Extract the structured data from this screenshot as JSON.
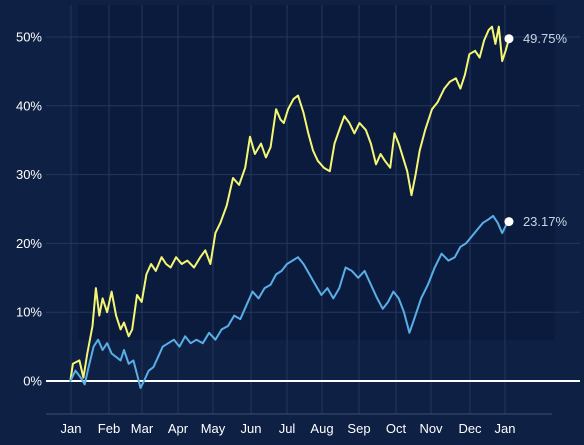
{
  "chart_data": {
    "type": "line",
    "title": "",
    "xlabel": "",
    "ylabel": "",
    "grid": true,
    "x_ticks": [
      "Jan",
      "Feb",
      "Mar",
      "Apr",
      "May",
      "Jun",
      "Jul",
      "Aug",
      "Sep",
      "Oct",
      "Nov",
      "Dec",
      "Jan"
    ],
    "y_ticks": [
      "0%",
      "10%",
      "20%",
      "30%",
      "40%",
      "50%"
    ],
    "ylim": [
      -4.5,
      54.5
    ],
    "x_domain": [
      "Jan 1",
      "Jan 21 (next year)"
    ],
    "series": [
      {
        "color": "#f4f774",
        "end_label": "49.75%",
        "points": [
          [
            "Jan 15",
            0.0
          ],
          [
            "Jan 17",
            2.5
          ],
          [
            "Jan 22",
            3.0
          ],
          [
            "Jan 25",
            0.5
          ],
          [
            "Jan 28",
            4.0
          ],
          [
            "Feb 1",
            8.0
          ],
          [
            "Feb 4",
            13.5
          ],
          [
            "Feb 7",
            9.5
          ],
          [
            "Feb 10",
            12.0
          ],
          [
            "Feb 14",
            10.0
          ],
          [
            "Feb 18",
            13.0
          ],
          [
            "Feb 22",
            9.5
          ],
          [
            "Feb 26",
            7.5
          ],
          [
            "Mar 1",
            8.5
          ],
          [
            "Mar 5",
            6.5
          ],
          [
            "Mar 8",
            7.5
          ],
          [
            "Mar 12",
            12.5
          ],
          [
            "Mar 16",
            11.5
          ],
          [
            "Mar 20",
            15.5
          ],
          [
            "Mar 24",
            17.0
          ],
          [
            "Mar 28",
            16.0
          ],
          [
            "Apr 2",
            18.0
          ],
          [
            "Apr 6",
            17.0
          ],
          [
            "Apr 10",
            16.5
          ],
          [
            "Apr 15",
            18.0
          ],
          [
            "Apr 20",
            17.0
          ],
          [
            "Apr 25",
            17.5
          ],
          [
            "May 1",
            16.5
          ],
          [
            "May 6",
            18.0
          ],
          [
            "May 10",
            19.0
          ],
          [
            "May 14",
            17.0
          ],
          [
            "May 18",
            21.5
          ],
          [
            "May 22",
            23.0
          ],
          [
            "May 27",
            25.5
          ],
          [
            "Jun 1",
            29.5
          ],
          [
            "Jun 6",
            28.5
          ],
          [
            "Jun 11",
            31.0
          ],
          [
            "Jun 15",
            35.5
          ],
          [
            "Jun 19",
            33.0
          ],
          [
            "Jun 24",
            34.5
          ],
          [
            "Jun 28",
            32.5
          ],
          [
            "Jul 2",
            34.0
          ],
          [
            "Jul 7",
            39.5
          ],
          [
            "Jul 11",
            38.0
          ],
          [
            "Jul 14",
            37.5
          ],
          [
            "Jul 18",
            39.5
          ],
          [
            "Jul 23",
            41.0
          ],
          [
            "Jul 27",
            41.5
          ],
          [
            "Aug 1",
            39.0
          ],
          [
            "Aug 5",
            36.0
          ],
          [
            "Aug 9",
            33.5
          ],
          [
            "Aug 13",
            32.0
          ],
          [
            "Aug 18",
            31.0
          ],
          [
            "Aug 23",
            30.5
          ],
          [
            "Aug 27",
            34.5
          ],
          [
            "Sep 1",
            37.0
          ],
          [
            "Sep 4",
            38.5
          ],
          [
            "Sep 8",
            37.5
          ],
          [
            "Sep 12",
            36.0
          ],
          [
            "Sep 16",
            37.5
          ],
          [
            "Sep 21",
            36.5
          ],
          [
            "Sep 25",
            34.5
          ],
          [
            "Sep 29",
            31.5
          ],
          [
            "Oct 3",
            33.0
          ],
          [
            "Oct 7",
            32.0
          ],
          [
            "Oct 12",
            31.0
          ],
          [
            "Oct 16",
            36.0
          ],
          [
            "Oct 20",
            34.5
          ],
          [
            "Oct 24",
            32.5
          ],
          [
            "Oct 28",
            30.5
          ],
          [
            "Nov 1",
            27.0
          ],
          [
            "Nov 4",
            30.0
          ],
          [
            "Nov 7",
            33.5
          ],
          [
            "Nov 11",
            36.5
          ],
          [
            "Nov 16",
            39.5
          ],
          [
            "Nov 20",
            40.5
          ],
          [
            "Nov 25",
            42.5
          ],
          [
            "Nov 29",
            43.5
          ],
          [
            "Dec 4",
            44.0
          ],
          [
            "Dec 8",
            42.5
          ],
          [
            "Dec 12",
            44.5
          ],
          [
            "Dec 16",
            47.5
          ],
          [
            "Dec 21",
            48.0
          ],
          [
            "Dec 25",
            47.0
          ],
          [
            "Dec 29",
            49.5
          ],
          [
            "Jan 2",
            51.0
          ],
          [
            "Jan 5",
            51.5
          ],
          [
            "Jan 8",
            49.0
          ],
          [
            "Jan 11",
            51.5
          ],
          [
            "Jan 14",
            46.5
          ],
          [
            "Jan 17",
            48.0
          ],
          [
            "Jan 20",
            49.75
          ]
        ]
      },
      {
        "color": "#5aaee8",
        "end_label": "23.17%",
        "points": [
          [
            "Jan 15",
            0.0
          ],
          [
            "Jan 19",
            1.5
          ],
          [
            "Jan 23",
            0.5
          ],
          [
            "Jan 26",
            -0.5
          ],
          [
            "Jan 29",
            2.0
          ],
          [
            "Feb 2",
            5.0
          ],
          [
            "Feb 6",
            6.0
          ],
          [
            "Feb 10",
            4.5
          ],
          [
            "Feb 14",
            5.5
          ],
          [
            "Feb 18",
            4.0
          ],
          [
            "Feb 22",
            3.5
          ],
          [
            "Feb 26",
            3.0
          ],
          [
            "Mar 1",
            4.5
          ],
          [
            "Mar 5",
            2.5
          ],
          [
            "Mar 9",
            3.0
          ],
          [
            "Mar 12",
            1.0
          ],
          [
            "Mar 15",
            -1.0
          ],
          [
            "Mar 18",
            0.0
          ],
          [
            "Mar 22",
            1.5
          ],
          [
            "Mar 26",
            2.0
          ],
          [
            "Mar 30",
            3.5
          ],
          [
            "Apr 3",
            5.0
          ],
          [
            "Apr 8",
            5.5
          ],
          [
            "Apr 13",
            6.0
          ],
          [
            "Apr 18",
            5.0
          ],
          [
            "Apr 23",
            6.5
          ],
          [
            "Apr 28",
            5.5
          ],
          [
            "May 3",
            6.0
          ],
          [
            "May 8",
            5.5
          ],
          [
            "May 13",
            7.0
          ],
          [
            "May 18",
            6.0
          ],
          [
            "May 23",
            7.5
          ],
          [
            "May 28",
            8.0
          ],
          [
            "Jun 2",
            9.5
          ],
          [
            "Jun 7",
            9.0
          ],
          [
            "Jun 12",
            11.0
          ],
          [
            "Jun 17",
            13.0
          ],
          [
            "Jun 22",
            12.0
          ],
          [
            "Jun 27",
            13.5
          ],
          [
            "Jul 2",
            14.0
          ],
          [
            "Jul 7",
            15.5
          ],
          [
            "Jul 12",
            16.0
          ],
          [
            "Jul 17",
            17.0
          ],
          [
            "Jul 22",
            17.5
          ],
          [
            "Jul 27",
            18.0
          ],
          [
            "Aug 1",
            17.0
          ],
          [
            "Aug 6",
            15.5
          ],
          [
            "Aug 11",
            14.0
          ],
          [
            "Aug 16",
            12.5
          ],
          [
            "Aug 21",
            13.5
          ],
          [
            "Aug 26",
            12.0
          ],
          [
            "Aug 31",
            13.5
          ],
          [
            "Sep 5",
            16.5
          ],
          [
            "Sep 10",
            16.0
          ],
          [
            "Sep 15",
            15.0
          ],
          [
            "Sep 20",
            16.0
          ],
          [
            "Sep 25",
            14.0
          ],
          [
            "Sep 30",
            12.0
          ],
          [
            "Oct 5",
            10.5
          ],
          [
            "Oct 10",
            11.5
          ],
          [
            "Oct 15",
            13.0
          ],
          [
            "Oct 20",
            12.0
          ],
          [
            "Oct 25",
            10.0
          ],
          [
            "Oct 30",
            7.0
          ],
          [
            "Nov 3",
            9.0
          ],
          [
            "Nov 8",
            12.0
          ],
          [
            "Nov 13",
            14.0
          ],
          [
            "Nov 18",
            16.5
          ],
          [
            "Nov 23",
            18.5
          ],
          [
            "Nov 28",
            17.5
          ],
          [
            "Dec 3",
            18.0
          ],
          [
            "Dec 8",
            19.5
          ],
          [
            "Dec 13",
            20.0
          ],
          [
            "Dec 18",
            21.0
          ],
          [
            "Dec 23",
            22.0
          ],
          [
            "Dec 28",
            23.0
          ],
          [
            "Jan 2",
            23.5
          ],
          [
            "Jan 6",
            24.0
          ],
          [
            "Jan 10",
            23.0
          ],
          [
            "Jan 14",
            21.5
          ],
          [
            "Jan 17",
            22.5
          ],
          [
            "Jan 20",
            23.17
          ]
        ]
      }
    ]
  },
  "colors": {
    "background": "#0e2043",
    "forecast_band": "#0a1838",
    "grid": "#24375c",
    "zero_line": "#ffffff",
    "axis": "#3a4e75",
    "marker": "#ffffff"
  }
}
